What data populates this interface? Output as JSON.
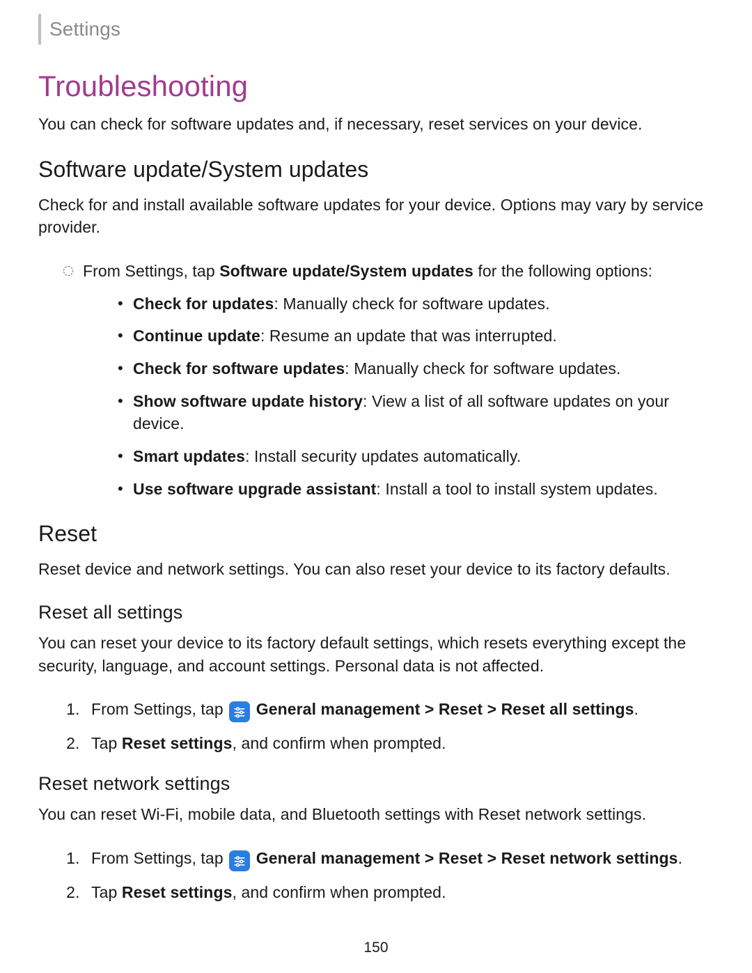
{
  "breadcrumb": "Settings",
  "page_number": "150",
  "colors": {
    "heading_accent": "#a23a8f",
    "icon_bg": "#2a7de1",
    "text": "#1a1a1a",
    "breadcrumb_text": "#8a8a8a",
    "breadcrumb_bar": "#bfbfbf"
  },
  "h1": "Troubleshooting",
  "intro": "You can check for software updates and, if necessary, reset services on your device.",
  "software": {
    "heading": "Software update/System updates",
    "body": "Check for and install available software updates for your device. Options may vary by service provider.",
    "lead_prefix": "From Settings, tap ",
    "lead_bold": "Software update/System updates",
    "lead_suffix": " for the following options:",
    "items": [
      {
        "term": "Check for updates",
        "desc": ": Manually check for software updates."
      },
      {
        "term": "Continue update",
        "desc": ": Resume an update that was interrupted."
      },
      {
        "term": "Check for software updates",
        "desc": ": Manually check for software updates."
      },
      {
        "term": "Show software update history",
        "desc": ": View a list of all software updates on your device."
      },
      {
        "term": "Smart updates",
        "desc": ": Install security updates automatically."
      },
      {
        "term": "Use software upgrade assistant",
        "desc": ": Install a tool to install system updates."
      }
    ]
  },
  "reset": {
    "heading": "Reset",
    "body": "Reset device and network settings. You can also reset your device to its factory defaults.",
    "all": {
      "heading": "Reset all settings",
      "body": "You can reset your device to its factory default settings, which resets everything except the security, language, and account settings. Personal data is not affected.",
      "step1_prefix": "From Settings, tap ",
      "step1_bold": "General management > Reset > Reset all settings",
      "step1_suffix": ".",
      "step2_prefix": "Tap ",
      "step2_bold": "Reset settings",
      "step2_suffix": ", and confirm when prompted."
    },
    "network": {
      "heading": "Reset network settings",
      "body": "You can reset Wi-Fi, mobile data, and Bluetooth settings with Reset network settings.",
      "step1_prefix": "From Settings, tap ",
      "step1_bold": "General management > Reset > Reset network settings",
      "step1_suffix": ".",
      "step2_prefix": "Tap ",
      "step2_bold": "Reset settings",
      "step2_suffix": ", and confirm when prompted."
    }
  }
}
